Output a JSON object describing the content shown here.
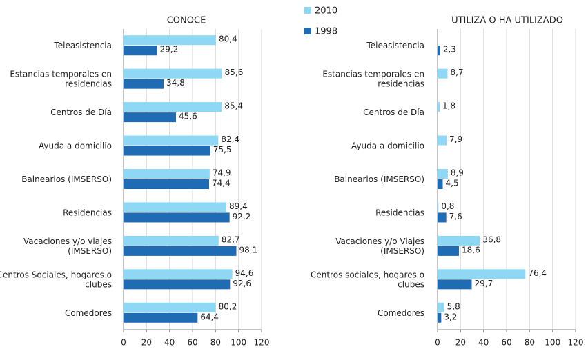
{
  "chart_data": [
    {
      "type": "bar",
      "orientation": "horizontal",
      "title": "CONOCE",
      "categories": [
        "Teleasistencia",
        "Estancias temporales en residencias",
        "Centros de Día",
        "Ayuda a domicilio",
        "Balnearios (IMSERSO)",
        "Residencias",
        "Vacaciones y/o viajes (IMSERSO)",
        "Centros Sociales, hogares o clubes",
        "Comedores"
      ],
      "series": [
        {
          "name": "2010",
          "color": "#8fd8f5",
          "values": [
            80.4,
            85.6,
            85.4,
            82.4,
            74.9,
            89.4,
            82.7,
            94.6,
            80.2
          ],
          "value_labels": [
            "80,4",
            "85,6",
            "85,4",
            "82,4",
            "74,9",
            "89,4",
            "82,7",
            "94,6",
            "80,2"
          ]
        },
        {
          "name": "1998",
          "color": "#1f6cb5",
          "values": [
            29.2,
            34.8,
            45.6,
            75.5,
            74.4,
            92.2,
            98.1,
            92.6,
            64.4
          ],
          "value_labels": [
            "29,2",
            "34,8",
            "45,6",
            "75,5",
            "74,4",
            "92,2",
            "98,1",
            "92,6",
            "64,4"
          ]
        }
      ],
      "xlim": [
        0,
        120
      ],
      "xticks": [
        0,
        20,
        40,
        60,
        80,
        100,
        120
      ],
      "grid": true,
      "legend": "top"
    },
    {
      "type": "bar",
      "orientation": "horizontal",
      "title": "UTILIZA O HA UTILIZADO",
      "categories": [
        "Teleasistencia",
        "Estancias temporales en residencias",
        "Centros de Día",
        "Ayuda a domicilio",
        "Balnearios (IMSERSO)",
        "Residencias",
        "Vacaciones y/o Viajes (IMSERSO)",
        "Centros sociales, hogares o clubes",
        "Comedores"
      ],
      "series": [
        {
          "color": "#8fd8f5",
          "values": [
            null,
            8.7,
            1.8,
            7.9,
            8.9,
            0.8,
            36.8,
            76.4,
            5.8
          ],
          "value_labels": [
            null,
            "8,7",
            "1,8",
            "7,9",
            "8,9",
            "0,8",
            "36,8",
            "76,4",
            "5,8"
          ]
        },
        {
          "color": "#1f6cb5",
          "values": [
            2.3,
            null,
            null,
            null,
            4.5,
            7.6,
            18.6,
            29.7,
            3.2
          ],
          "value_labels": [
            "2,3",
            null,
            null,
            null,
            "4,5",
            "7,6",
            "18,6",
            "29,7",
            "3,2"
          ]
        }
      ],
      "xlim": [
        0,
        120
      ],
      "xticks": [
        0,
        20,
        40,
        60,
        80,
        100,
        120
      ],
      "grid": true
    }
  ]
}
